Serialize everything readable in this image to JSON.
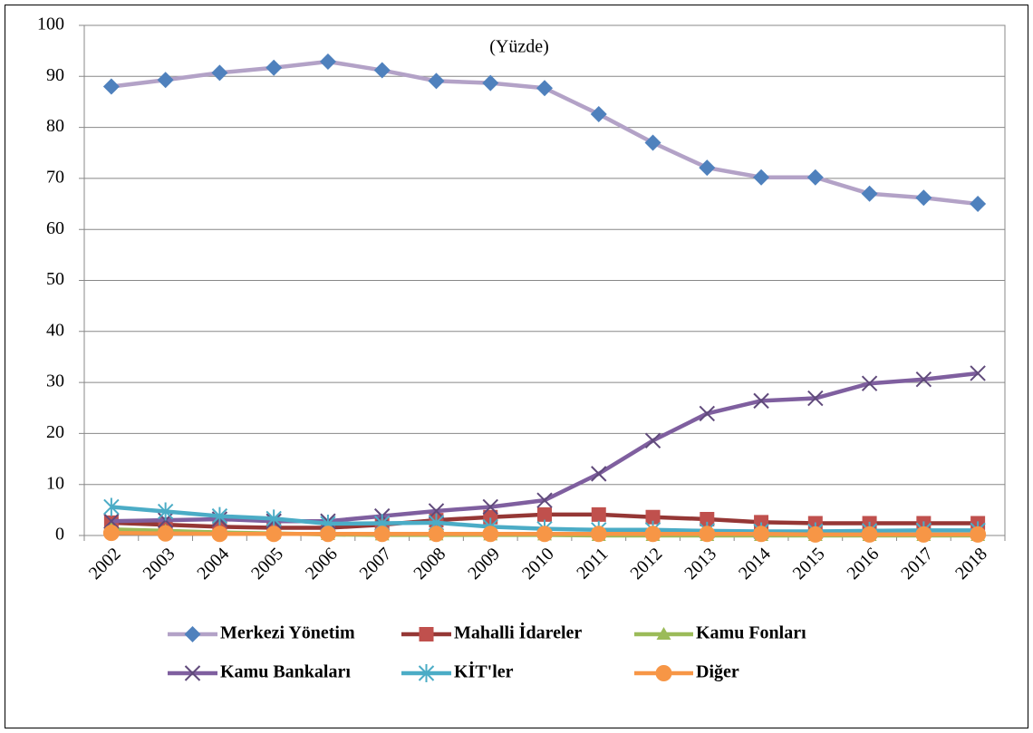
{
  "chart_data": {
    "type": "line",
    "annotation": "(Yüzde)",
    "categories": [
      "2002",
      "2003",
      "2004",
      "2005",
      "2006",
      "2007",
      "2008",
      "2009",
      "2010",
      "2011",
      "2012",
      "2013",
      "2014",
      "2015",
      "2016",
      "2017",
      "2018"
    ],
    "ylim": [
      0,
      100
    ],
    "yticks": [
      0,
      10,
      20,
      30,
      40,
      50,
      60,
      70,
      80,
      90,
      100
    ],
    "grid": true,
    "legend": "bottom",
    "series": [
      {
        "name": "Merkezi Yönetim",
        "color": "#b3a2c7",
        "marker_color": "#4f81bd",
        "marker": "diamond",
        "values": [
          88,
          89.3,
          90.7,
          91.7,
          92.9,
          91.2,
          89.1,
          88.7,
          87.7,
          82.6,
          77,
          72.1,
          70.2,
          70.2,
          67,
          66.2,
          65
        ]
      },
      {
        "name": "Mahalli İdareler",
        "color": "#953735",
        "marker_color": "#c0504d",
        "marker": "square",
        "values": [
          2.5,
          2.1,
          1.7,
          1.5,
          1.5,
          2.1,
          3.0,
          3.6,
          4.1,
          4.1,
          3.6,
          3.2,
          2.6,
          2.4,
          2.4,
          2.4,
          2.4
        ]
      },
      {
        "name": "Kamu Fonları",
        "color": "#9bbb59",
        "marker_color": "#9bbb59",
        "marker": "triangle",
        "values": [
          1.2,
          0.9,
          0.6,
          0.4,
          0.2,
          0.1,
          0.1,
          0.1,
          0.1,
          0,
          0,
          0,
          0,
          0,
          0,
          0,
          0
        ]
      },
      {
        "name": "Kamu Bankaları",
        "color": "#7f5f9f",
        "marker_color": "#604a7b",
        "marker": "x",
        "values": [
          2.8,
          3.0,
          3.2,
          2.8,
          2.8,
          3.8,
          4.8,
          5.6,
          6.9,
          12.1,
          18.6,
          23.9,
          26.4,
          26.9,
          29.8,
          30.6,
          31.8
        ]
      },
      {
        "name": "KİT'ler",
        "color": "#4bacc6",
        "marker_color": "#4bacc6",
        "marker": "star",
        "values": [
          5.6,
          4.7,
          3.8,
          3.3,
          2.3,
          2.4,
          2.5,
          1.7,
          1.3,
          1.1,
          1.1,
          0.9,
          0.8,
          0.8,
          0.9,
          1.0,
          1.0
        ]
      },
      {
        "name": "Diğer",
        "color": "#f79646",
        "marker_color": "#f79646",
        "marker": "circle",
        "values": [
          0.5,
          0.4,
          0.3,
          0.3,
          0.3,
          0.3,
          0.3,
          0.3,
          0.3,
          0.3,
          0.3,
          0.3,
          0.3,
          0.2,
          0.2,
          0.2,
          0.2
        ]
      }
    ]
  }
}
